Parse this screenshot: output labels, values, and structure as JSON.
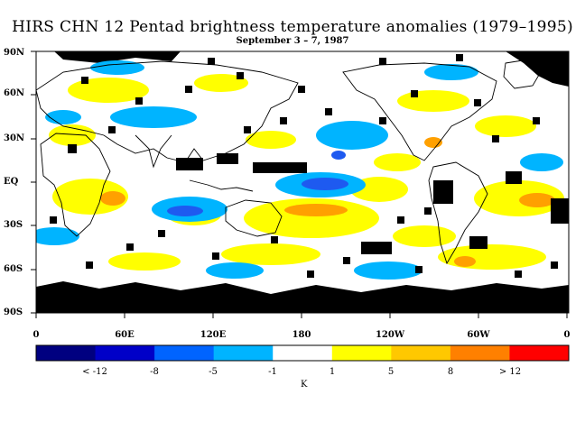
{
  "map": {
    "title": "HIRS CHN 12 Pentad brightness temperature anomalies (1979–1995)",
    "subtitle": "September 3 – 7, 1987",
    "lat_labels": [
      "90N",
      "60N",
      "30N",
      "EQ",
      "30S",
      "60S",
      "90S"
    ],
    "lon_labels": [
      "0",
      "60E",
      "120E",
      "180",
      "120W",
      "60W",
      "0"
    ],
    "colors": {
      "missing": "#000000",
      "neutral": "#ffffff",
      "cold_strong": "#0a0aa0",
      "cold": "#1e5af0",
      "cool": "#00b4ff",
      "warm": "#ffff00",
      "hot": "#ffa000",
      "hotter": "#ff8000",
      "extreme": "#ff0000",
      "land_outline": "#000000"
    }
  },
  "colorbar": {
    "colors": [
      "#000080",
      "#0000c8",
      "#0064ff",
      "#00b4ff",
      "#ffffff",
      "#ffff00",
      "#ffc800",
      "#ff8000",
      "#ff0000"
    ],
    "labels": [
      "< -12",
      "-8",
      "-5",
      "-1",
      "1",
      "5",
      "8",
      "> 12"
    ],
    "unit": "K"
  }
}
